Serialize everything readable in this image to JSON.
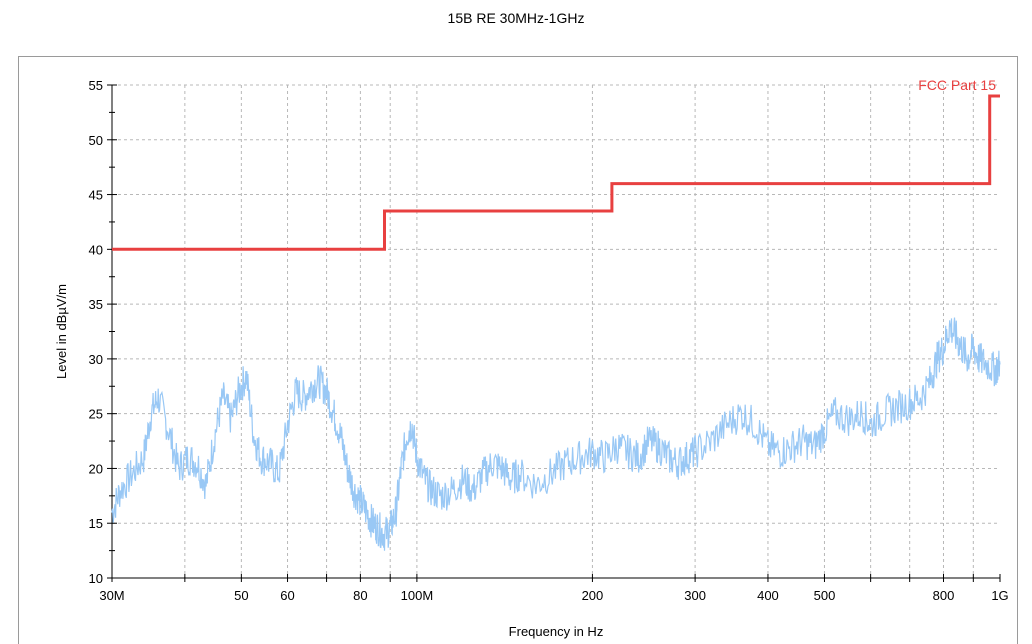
{
  "chart_data": {
    "type": "line",
    "title": "15B RE 30MHz-1GHz",
    "xlabel": "Frequency in Hz",
    "ylabel": "Level in dBµV/m",
    "x_scale": "log",
    "xlim": [
      30000000,
      1000000000
    ],
    "ylim": [
      10,
      55
    ],
    "grid": true,
    "x_ticks": [
      {
        "value": 30000000,
        "label": "30M"
      },
      {
        "value": 50000000,
        "label": "50"
      },
      {
        "value": 60000000,
        "label": "60"
      },
      {
        "value": 80000000,
        "label": "80"
      },
      {
        "value": 100000000,
        "label": "100M"
      },
      {
        "value": 200000000,
        "label": "200"
      },
      {
        "value": 300000000,
        "label": "300"
      },
      {
        "value": 400000000,
        "label": "400"
      },
      {
        "value": 500000000,
        "label": "500"
      },
      {
        "value": 800000000,
        "label": "800"
      },
      {
        "value": 1000000000,
        "label": "1G"
      }
    ],
    "y_ticks": [
      10,
      15,
      20,
      25,
      30,
      35,
      40,
      45,
      50,
      55
    ],
    "limit_line": {
      "name": "FCC Part 15",
      "color": "#e84040",
      "points": [
        [
          30000000,
          40
        ],
        [
          88000000,
          40
        ],
        [
          88000000,
          43.5
        ],
        [
          216000000,
          43.5
        ],
        [
          216000000,
          46
        ],
        [
          960000000,
          46
        ],
        [
          960000000,
          54
        ],
        [
          1000000000,
          54
        ]
      ]
    },
    "measurement": {
      "color": "#99c8f5",
      "points": [
        [
          30000000,
          16
        ],
        [
          31000000,
          18
        ],
        [
          32500000,
          19.5
        ],
        [
          34000000,
          21
        ],
        [
          35000000,
          25
        ],
        [
          36000000,
          26.5
        ],
        [
          37500000,
          23.5
        ],
        [
          39000000,
          20
        ],
        [
          40500000,
          21
        ],
        [
          42000000,
          20.5
        ],
        [
          43500000,
          18.5
        ],
        [
          45000000,
          23
        ],
        [
          46500000,
          26.5
        ],
        [
          48000000,
          24.5
        ],
        [
          49500000,
          27
        ],
        [
          51000000,
          28.5
        ],
        [
          52500000,
          23
        ],
        [
          54000000,
          21
        ],
        [
          56000000,
          20.5
        ],
        [
          58000000,
          19.5
        ],
        [
          60000000,
          24
        ],
        [
          62000000,
          27
        ],
        [
          64000000,
          26.5
        ],
        [
          66000000,
          27.5
        ],
        [
          68000000,
          28
        ],
        [
          70000000,
          27
        ],
        [
          72000000,
          25
        ],
        [
          74000000,
          23
        ],
        [
          76000000,
          20
        ],
        [
          78000000,
          18
        ],
        [
          80000000,
          17
        ],
        [
          82000000,
          16
        ],
        [
          84000000,
          15
        ],
        [
          86000000,
          14.5
        ],
        [
          88000000,
          14
        ],
        [
          90000000,
          14.5
        ],
        [
          92000000,
          16
        ],
        [
          94000000,
          20
        ],
        [
          96000000,
          23
        ],
        [
          98000000,
          24
        ],
        [
          100000000,
          21
        ],
        [
          103000000,
          19
        ],
        [
          106000000,
          18
        ],
        [
          110000000,
          17.5
        ],
        [
          115000000,
          18
        ],
        [
          120000000,
          19
        ],
        [
          125000000,
          18
        ],
        [
          130000000,
          19.5
        ],
        [
          135000000,
          20.5
        ],
        [
          140000000,
          20
        ],
        [
          145000000,
          19
        ],
        [
          150000000,
          19.5
        ],
        [
          160000000,
          18.5
        ],
        [
          170000000,
          19.5
        ],
        [
          180000000,
          20.5
        ],
        [
          190000000,
          21
        ],
        [
          200000000,
          21.5
        ],
        [
          210000000,
          21
        ],
        [
          220000000,
          22
        ],
        [
          230000000,
          21.5
        ],
        [
          240000000,
          21
        ],
        [
          250000000,
          22.5
        ],
        [
          260000000,
          22
        ],
        [
          270000000,
          21
        ],
        [
          280000000,
          20.5
        ],
        [
          290000000,
          21
        ],
        [
          300000000,
          21.5
        ],
        [
          320000000,
          22.5
        ],
        [
          340000000,
          24
        ],
        [
          360000000,
          25
        ],
        [
          380000000,
          24
        ],
        [
          400000000,
          22
        ],
        [
          420000000,
          21.5
        ],
        [
          440000000,
          22
        ],
        [
          460000000,
          22.5
        ],
        [
          480000000,
          22
        ],
        [
          500000000,
          23.5
        ],
        [
          520000000,
          25
        ],
        [
          550000000,
          24.5
        ],
        [
          580000000,
          25
        ],
        [
          600000000,
          24
        ],
        [
          630000000,
          25
        ],
        [
          660000000,
          25.5
        ],
        [
          700000000,
          26
        ],
        [
          730000000,
          26.5
        ],
        [
          760000000,
          28
        ],
        [
          780000000,
          30
        ],
        [
          800000000,
          31
        ],
        [
          820000000,
          33
        ],
        [
          840000000,
          32
        ],
        [
          860000000,
          31
        ],
        [
          880000000,
          30
        ],
        [
          900000000,
          31
        ],
        [
          920000000,
          30
        ],
        [
          950000000,
          29.5
        ],
        [
          980000000,
          29
        ],
        [
          1000000000,
          29.5
        ]
      ]
    }
  }
}
